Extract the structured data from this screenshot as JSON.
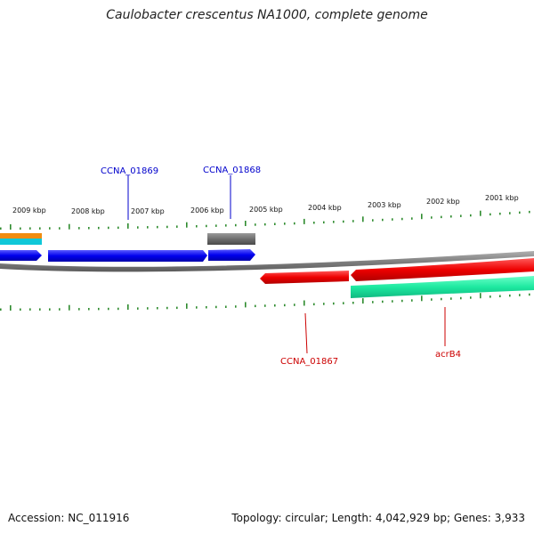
{
  "title": "Caulobacter crescentus NA1000, complete genome",
  "footer": {
    "accession": "Accession: NC_011916",
    "topology": "Topology: circular; Length: 4,042,929 bp; Genes: 3,933"
  },
  "colors": {
    "backbone": "#808080",
    "tick": "#2e8b2e",
    "forward_gene": "#0000ee",
    "reverse_gene": "#ee0000",
    "pseudo_gene": "#6e6e6e",
    "reverse_cds": "#1de9a0",
    "orange_gene": "#f08c10",
    "cyan_gene": "#10c8d8",
    "label_forward": "#0000cc",
    "label_reverse": "#cc0000"
  },
  "ticks": {
    "labels": [
      "2009 kbp",
      "2008 kbp",
      "2007 kbp",
      "2006 kbp",
      "2005 kbp",
      "2004 kbp",
      "2003 kbp",
      "2002 kbp",
      "2001 kbp"
    ]
  },
  "genes": {
    "labels": {
      "ccna_01869": "CCNA_01869",
      "ccna_01868": "CCNA_01868",
      "ccna_01867": "CCNA_01867",
      "acrb4": "acrB4"
    }
  }
}
